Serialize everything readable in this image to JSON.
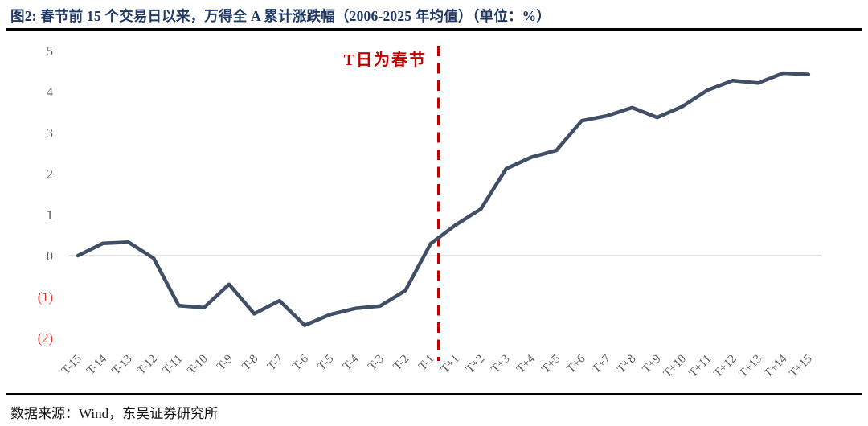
{
  "header": {
    "title": "图2:  春节前 15 个交易日以来，万得全 A 累计涨跌幅（2006-2025 年均值）（单位：%）"
  },
  "footer": {
    "source": "数据来源：Wind，东吴证券研究所"
  },
  "chart_data": {
    "type": "line",
    "title": "春节前 15 个交易日以来，万得全 A 累计涨跌幅（2006-2025 年均值）",
    "unit": "%",
    "annotation": "T日为春节",
    "categories": [
      "T-15",
      "T-14",
      "T-13",
      "T-12",
      "T-11",
      "T-10",
      "T-9",
      "T-8",
      "T-7",
      "T-6",
      "T-5",
      "T-4",
      "T-3",
      "T-2",
      "T-1",
      "T+1",
      "T+2",
      "T+3",
      "T+4",
      "T+5",
      "T+6",
      "T+7",
      "T+8",
      "T+9",
      "T+10",
      "T+11",
      "T+12",
      "T+13",
      "T+14",
      "T+15"
    ],
    "values": [
      0.0,
      0.3,
      0.33,
      -0.06,
      -1.22,
      -1.27,
      -0.7,
      -1.42,
      -1.1,
      -1.7,
      -1.44,
      -1.29,
      -1.23,
      -0.85,
      0.29,
      0.75,
      1.14,
      2.12,
      2.4,
      2.57,
      3.29,
      3.41,
      3.61,
      3.37,
      3.64,
      4.04,
      4.27,
      4.21,
      4.45,
      4.42
    ],
    "xlabel": "",
    "ylabel": "",
    "ylim": [
      -2,
      5
    ],
    "yticks": [
      5,
      4,
      3,
      2,
      1,
      0,
      -1,
      -2
    ],
    "ytick_labels": [
      "5",
      "4",
      "3",
      "2",
      "1",
      "0",
      "(1)",
      "(2)"
    ],
    "grid": "zero-line-only",
    "legend": "none",
    "event_line": {
      "label": "T日为春节",
      "position_between": [
        "T-1",
        "T+1"
      ],
      "style": "dashed",
      "color": "#c00000"
    },
    "colors": {
      "series": "#404f66",
      "title": "#1f3864",
      "axis_text": "#595959",
      "negative_ticks": "#e0342b",
      "annotation": "#c00000",
      "zero_line": "#d9d9d9"
    }
  }
}
